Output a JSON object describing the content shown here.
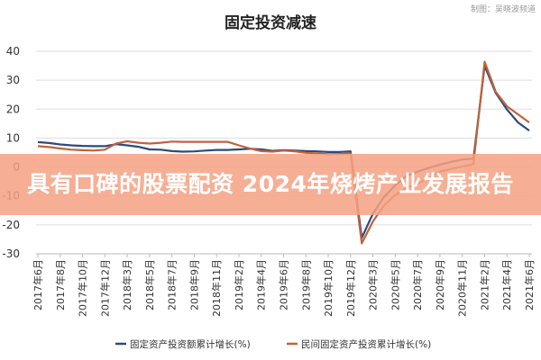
{
  "watermark": "制图：吴晓波频道",
  "overlay_banner": "具有口碑的股票配资 2024年烧烤产业发展报告",
  "colors": {
    "series1": "#2e4a7a",
    "series2": "#c0633a",
    "banner": "#f4a183",
    "grid": "#dddddd"
  },
  "chart_data": {
    "type": "line",
    "title": "固定投资减速",
    "categories": [
      "2017年6月",
      "2017年8月",
      "2017年10月",
      "2017年12月",
      "2018年3月",
      "2018年5月",
      "2018年7月",
      "2018年9月",
      "2018年11月",
      "2019年2月",
      "2019年4月",
      "2019年6月",
      "2019年8月",
      "2019年10月",
      "2019年12月",
      "2020年3月",
      "2020年5月",
      "2020年7月",
      "2020年9月",
      "2020年11月",
      "2021年2月",
      "2021年4月",
      "2021年6月"
    ],
    "x": [
      "2017年6月",
      "2017年7月",
      "2017年8月",
      "2017年9月",
      "2017年10月",
      "2017年11月",
      "2017年12月",
      "2018年2月",
      "2018年3月",
      "2018年4月",
      "2018年5月",
      "2018年6月",
      "2018年7月",
      "2018年8月",
      "2018年9月",
      "2018年10月",
      "2018年11月",
      "2018年12月",
      "2019年2月",
      "2019年3月",
      "2019年4月",
      "2019年5月",
      "2019年6月",
      "2019年7月",
      "2019年8月",
      "2019年9月",
      "2019年10月",
      "2019年11月",
      "2019年12月",
      "2020年2月",
      "2020年3月",
      "2020年4月",
      "2020年5月",
      "2020年6月",
      "2020年7月",
      "2020年8月",
      "2020年9月",
      "2020年10月",
      "2020年11月",
      "2020年12月",
      "2021年2月",
      "2021年3月",
      "2021年4月",
      "2021年5月",
      "2021年6月"
    ],
    "series": [
      {
        "name": "固定资产投资额累计增长(%)",
        "color": "#2e4a7a",
        "values": [
          8.6,
          8.3,
          7.8,
          7.5,
          7.3,
          7.2,
          7.2,
          7.9,
          7.5,
          7.0,
          6.1,
          6.0,
          5.5,
          5.3,
          5.4,
          5.7,
          5.9,
          5.9,
          6.1,
          6.3,
          6.1,
          5.6,
          5.8,
          5.7,
          5.5,
          5.4,
          5.2,
          5.2,
          5.4,
          -24.5,
          -16.1,
          -10.3,
          -6.3,
          -3.1,
          -1.6,
          -0.3,
          0.8,
          1.8,
          2.6,
          2.9,
          35.0,
          25.6,
          19.9,
          15.4,
          12.6
        ]
      },
      {
        "name": "民间固定资产投资累计增长(%)",
        "color": "#c0633a",
        "values": [
          7.2,
          6.9,
          6.4,
          6.0,
          5.8,
          5.7,
          6.0,
          8.1,
          8.9,
          8.4,
          8.1,
          8.4,
          8.8,
          8.7,
          8.7,
          8.7,
          8.7,
          8.7,
          7.5,
          6.4,
          5.5,
          5.3,
          5.7,
          5.4,
          4.9,
          4.7,
          4.4,
          4.5,
          4.7,
          -26.4,
          -18.8,
          -13.3,
          -9.6,
          -7.3,
          -5.7,
          -3.9,
          -1.5,
          -0.7,
          0.2,
          1.0,
          36.4,
          26.0,
          21.0,
          18.2,
          15.4
        ]
      }
    ],
    "ylim": [
      -30,
      40
    ],
    "yticks": [
      -30,
      -20,
      -10,
      0,
      10,
      20,
      30,
      40
    ],
    "grid": true,
    "legend_position": "bottom"
  }
}
